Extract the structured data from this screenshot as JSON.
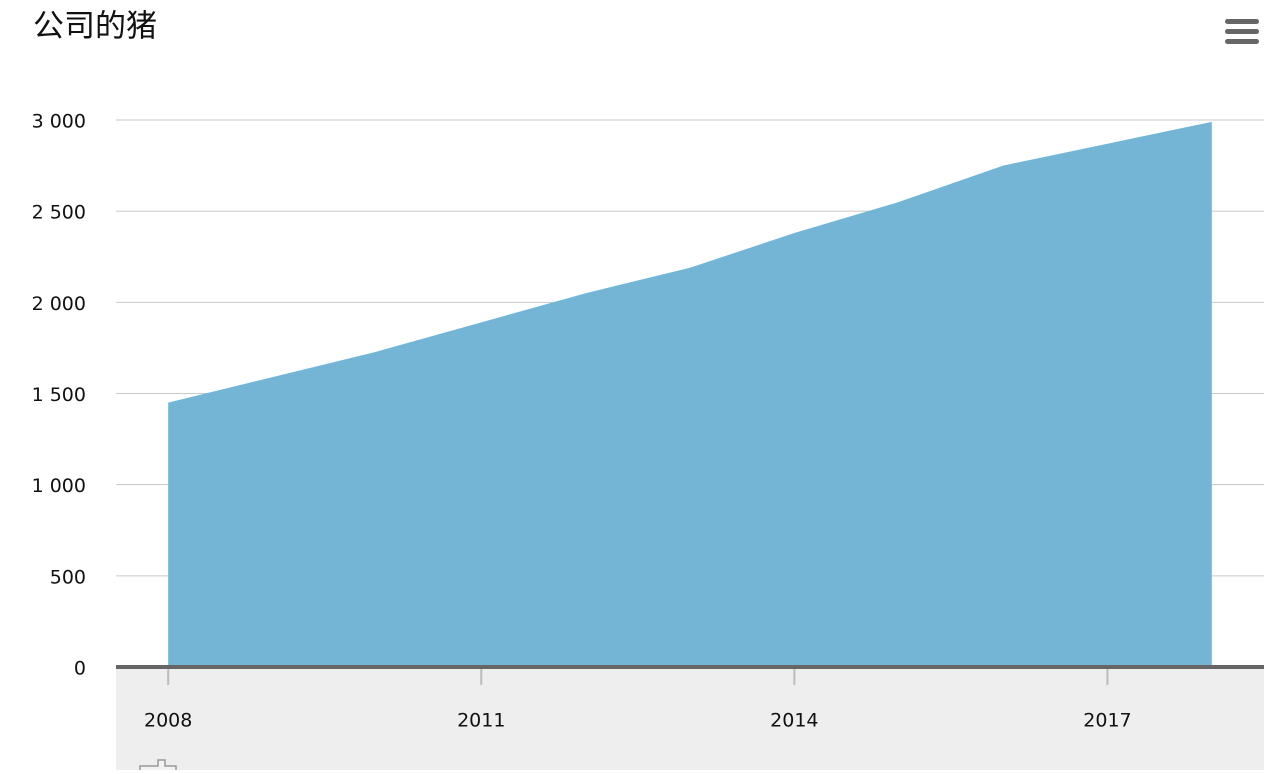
{
  "chart_data": {
    "type": "area",
    "title": "公司的猪",
    "x": [
      2008,
      2009,
      2010,
      2011,
      2012,
      2013,
      2014,
      2015,
      2016,
      2017,
      2018
    ],
    "series": [
      {
        "color": "#74b5d6",
        "values": [
          1450,
          1590,
          1730,
          1890,
          2050,
          2190,
          2380,
          2550,
          2750,
          2870,
          2990
        ]
      }
    ],
    "xlim": [
      2007.5,
      2018.5
    ],
    "xticks": [
      2008,
      2011,
      2014,
      2017
    ],
    "ylim": [
      0,
      3000
    ],
    "yticks": [
      0,
      500,
      {
        "value": 1000,
        "label": "1 000"
      },
      {
        "value": 1500,
        "label": "1 500"
      },
      {
        "value": 2000,
        "label": "2 000"
      },
      {
        "value": 2500,
        "label": "2 500"
      },
      {
        "value": 3000,
        "label": "3 000"
      }
    ],
    "grid": true
  }
}
